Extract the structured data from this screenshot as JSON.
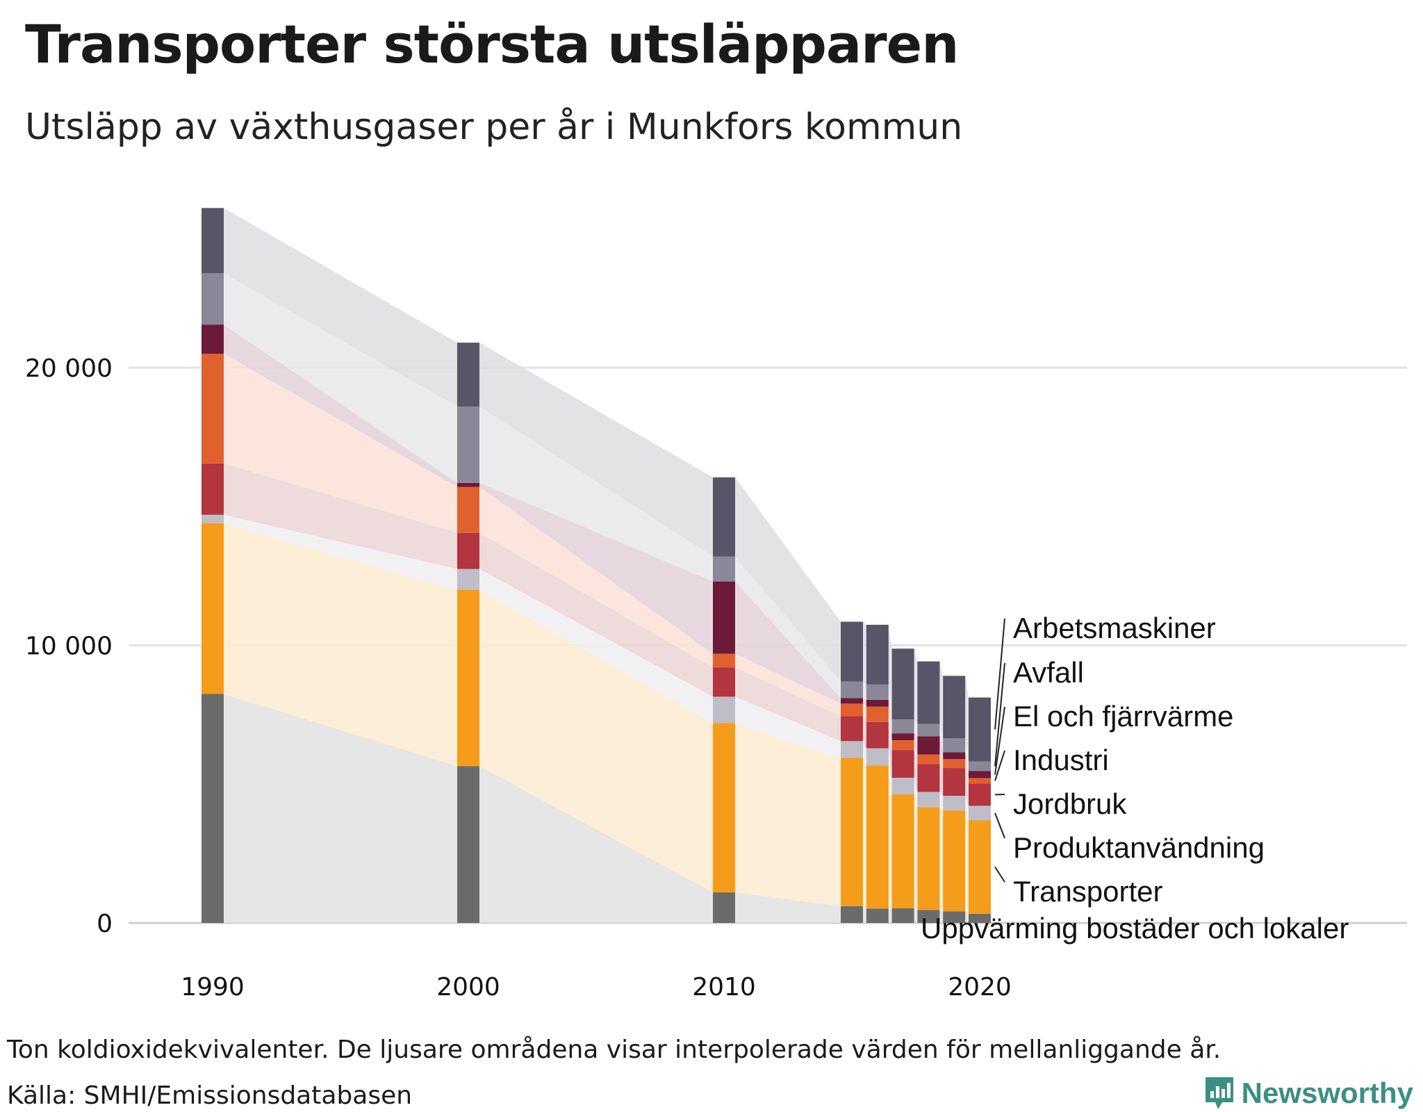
{
  "title": "Transporter största utsläpparen",
  "subtitle": "Utsläpp av växthusgaser per år i Munkfors kommun",
  "note": "Ton koldioxidekvivalenter. De ljusare områdena visar interpolerade värden för mellanliggande år.",
  "source": "Källa: SMHI/Emissionsdatabasen",
  "brand": "Newsworthy",
  "chart_data": {
    "type": "bar",
    "stacked": true,
    "x": [
      1990,
      2000,
      2010,
      2015,
      2016,
      2017,
      2018,
      2019,
      2020
    ],
    "ylim": [
      0,
      25800
    ],
    "y_ticks": [
      0,
      10000,
      20000
    ],
    "y_tick_labels": [
      "0",
      "10 000",
      "20 000"
    ],
    "x_ticks": [
      1990,
      2000,
      2010,
      2020
    ],
    "x_tick_labels": [
      "1990",
      "2000",
      "2010",
      "2020"
    ],
    "grid": true,
    "interpolated_areas": true,
    "series": [
      {
        "name": "Uppvärming bostäder och lokaler",
        "color": "#6b6b6b",
        "area_color": "#e2e2e2",
        "values": [
          8250,
          5650,
          1100,
          600,
          520,
          530,
          470,
          420,
          330
        ]
      },
      {
        "name": "Transporter",
        "color": "#f59c1a",
        "area_color": "#fcebd0",
        "values": [
          6150,
          6350,
          6100,
          5350,
          5150,
          4100,
          3700,
          3630,
          3370
        ]
      },
      {
        "name": "Produktanvändning",
        "color": "#bfbdc8",
        "area_color": "#efeff2",
        "values": [
          300,
          750,
          950,
          600,
          620,
          600,
          550,
          530,
          520
        ]
      },
      {
        "name": "Jordbruk",
        "color": "#b2353f",
        "area_color": "#ecd3d6",
        "values": [
          1850,
          1300,
          1050,
          900,
          950,
          1000,
          1000,
          1000,
          800
        ]
      },
      {
        "name": "Industri",
        "color": "#e1612e",
        "area_color": "#fbe0d6",
        "values": [
          3950,
          1650,
          500,
          450,
          550,
          350,
          350,
          320,
          200
        ]
      },
      {
        "name": "El och fjärrvärme",
        "color": "#6d1a39",
        "area_color": "#e3d1d9",
        "values": [
          1050,
          150,
          2600,
          200,
          250,
          250,
          650,
          250,
          250
        ]
      },
      {
        "name": "Avfall",
        "color": "#8a8798",
        "area_color": "#e7e6ea",
        "values": [
          1850,
          2750,
          900,
          600,
          550,
          500,
          450,
          500,
          350
        ]
      },
      {
        "name": "Arbetsmaskiner",
        "color": "#575567",
        "area_color": "#dedde1",
        "values": [
          2350,
          2300,
          2850,
          2150,
          2150,
          2550,
          2250,
          2250,
          2300
        ]
      }
    ]
  }
}
